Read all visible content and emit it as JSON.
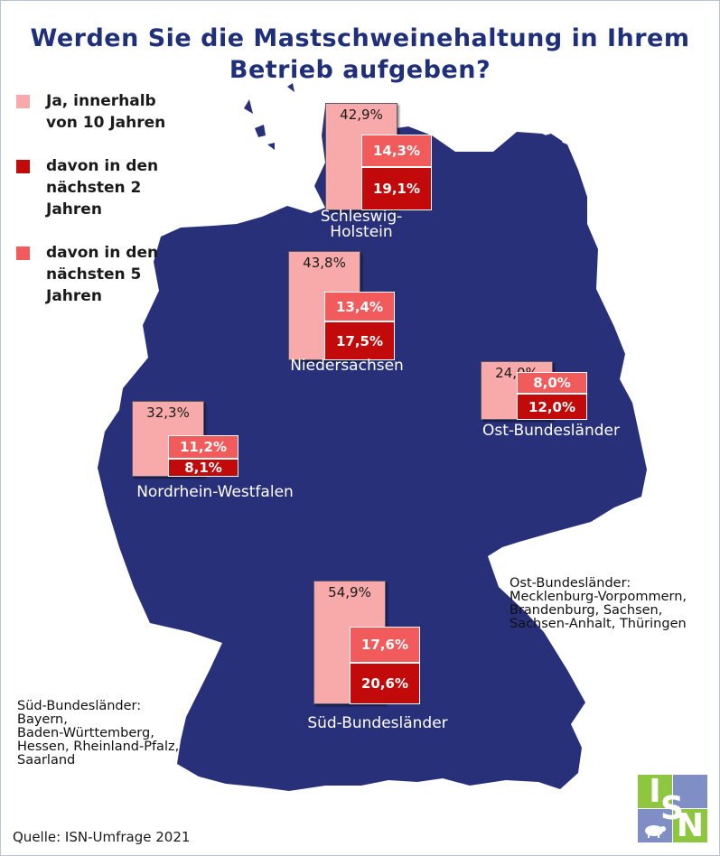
{
  "title": {
    "line1": "Werden Sie die Mastschweinehaltung in Ihrem",
    "line2": "Betrieb aufgeben?"
  },
  "legend": [
    {
      "label": "Ja, innerhalb\nvon 10 Jahren",
      "color": "#f8aaaa"
    },
    {
      "label": "davon in den\nnächsten 2\nJahren",
      "color": "#c20a0a"
    },
    {
      "label": "davon in den\nnächsten 5\nJahren",
      "color": "#f25b5b"
    }
  ],
  "colors": {
    "map": "#29307a",
    "ja_10_jahren": "#f8aaaa",
    "naechste_5_jahre": "#f25b5b",
    "naechste_2_jahre": "#c20a0a",
    "title": "#1f2f7a"
  },
  "chart_data": {
    "type": "bar",
    "unit": "%",
    "series": [
      {
        "name": "Ja, innerhalb von 10 Jahren",
        "values": [
          42.9,
          43.8,
          24.0,
          32.3,
          54.9
        ]
      },
      {
        "name": "davon in den nächsten 5 Jahren",
        "values": [
          14.3,
          13.4,
          8.0,
          11.2,
          17.6
        ]
      },
      {
        "name": "davon in den nächsten 2 Jahren",
        "values": [
          19.1,
          17.5,
          12.0,
          8.1,
          20.6
        ]
      }
    ],
    "regions": [
      {
        "name": "Schleswig-\nHolstein",
        "ja": "42,9%",
        "next5": "14,3%",
        "next2": "19,1%"
      },
      {
        "name": "Niedersachsen",
        "ja": "43,8%",
        "next5": "13,4%",
        "next2": "17,5%"
      },
      {
        "name": "Ost-Bundesländer",
        "ja": "24,0%",
        "next5": "8,0%",
        "next2": "12,0%"
      },
      {
        "name": "Nordrhein-Westfalen",
        "ja": "32,3%",
        "next5": "11,2%",
        "next2": "8,1%"
      },
      {
        "name": "Süd-Bundesländer",
        "ja": "54,9%",
        "next5": "17,6%",
        "next2": "20,6%"
      }
    ]
  },
  "notes": {
    "ost_title": "Ost-Bundesländer:",
    "ost_text": "Mecklenburg-Vorpommern,\nBrandenburg, Sachsen,\nSachsen-Anhalt, Thüringen",
    "sued_title": "Süd-Bundesländer:",
    "sued_text": "Bayern,\nBaden-Württemberg,\nHessen, Rheinland-Pfalz,\nSaarland"
  },
  "source": "Quelle: ISN-Umfrage 2021",
  "logo": {
    "letters": [
      "I",
      "S",
      "N"
    ],
    "colors": [
      "#8ec63f",
      "#7f8fc6",
      "#8ec63f",
      "#7f8fc6"
    ]
  }
}
